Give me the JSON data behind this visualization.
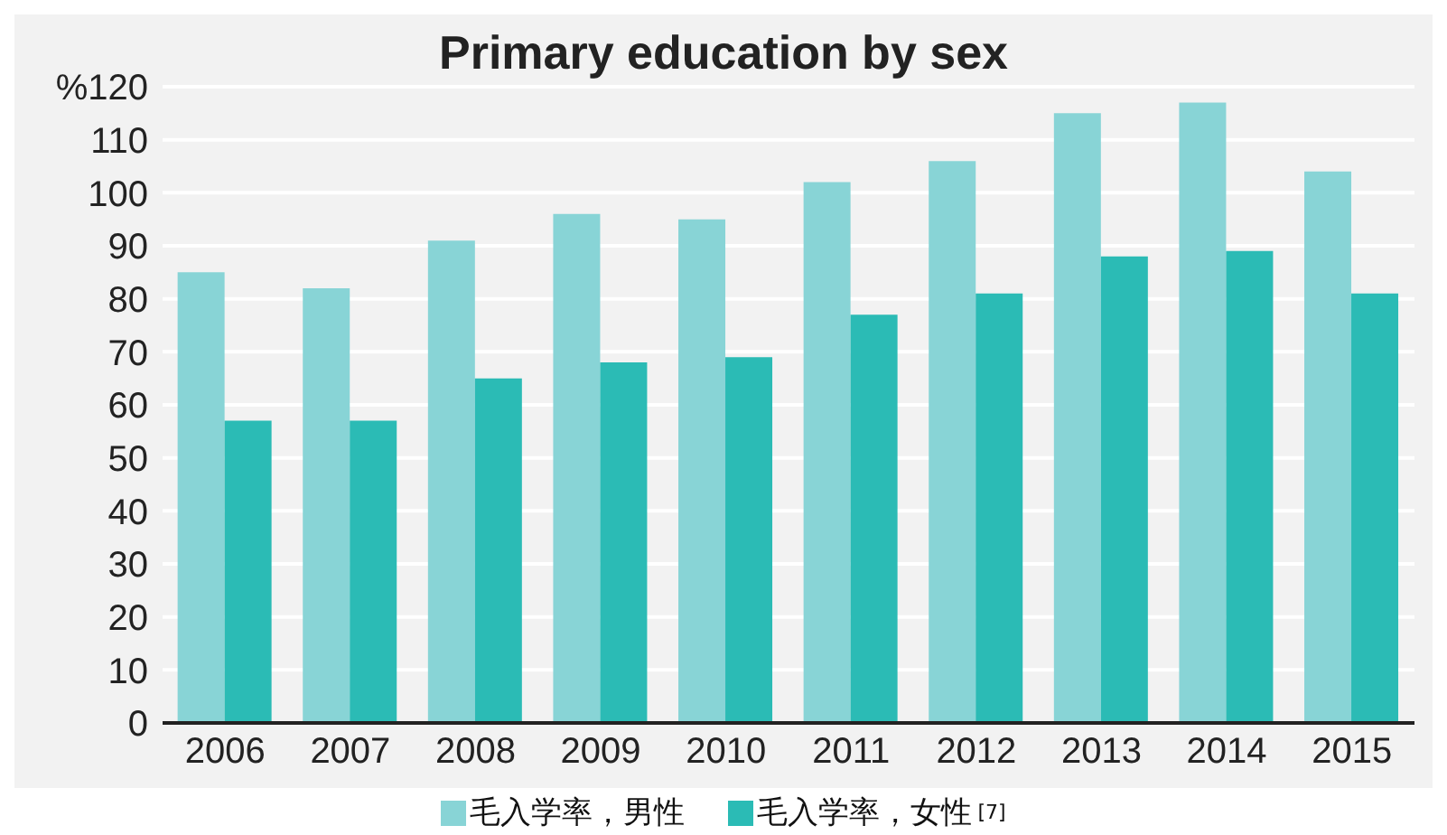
{
  "chart_data": {
    "type": "bar",
    "title": "Primary education by sex",
    "categories": [
      "2006",
      "2007",
      "2008",
      "2009",
      "2010",
      "2011",
      "2012",
      "2013",
      "2014",
      "2015"
    ],
    "series": [
      {
        "name": "毛入学率，男性",
        "color": "#88d4d6",
        "values": [
          85,
          82,
          91,
          96,
          95,
          102,
          106,
          115,
          117,
          104
        ]
      },
      {
        "name": "毛入学率，女性",
        "color": "#2bbbb5",
        "values": [
          57,
          57,
          65,
          68,
          69,
          77,
          81,
          88,
          89,
          81
        ]
      }
    ],
    "ylim": [
      0,
      120
    ],
    "yticks": [
      0,
      10,
      20,
      30,
      40,
      50,
      60,
      70,
      80,
      90,
      100,
      110,
      {
        "value": 120,
        "label": "%120"
      }
    ],
    "grid": "y",
    "legend": "bottom",
    "annotations": [
      "[7]"
    ]
  }
}
